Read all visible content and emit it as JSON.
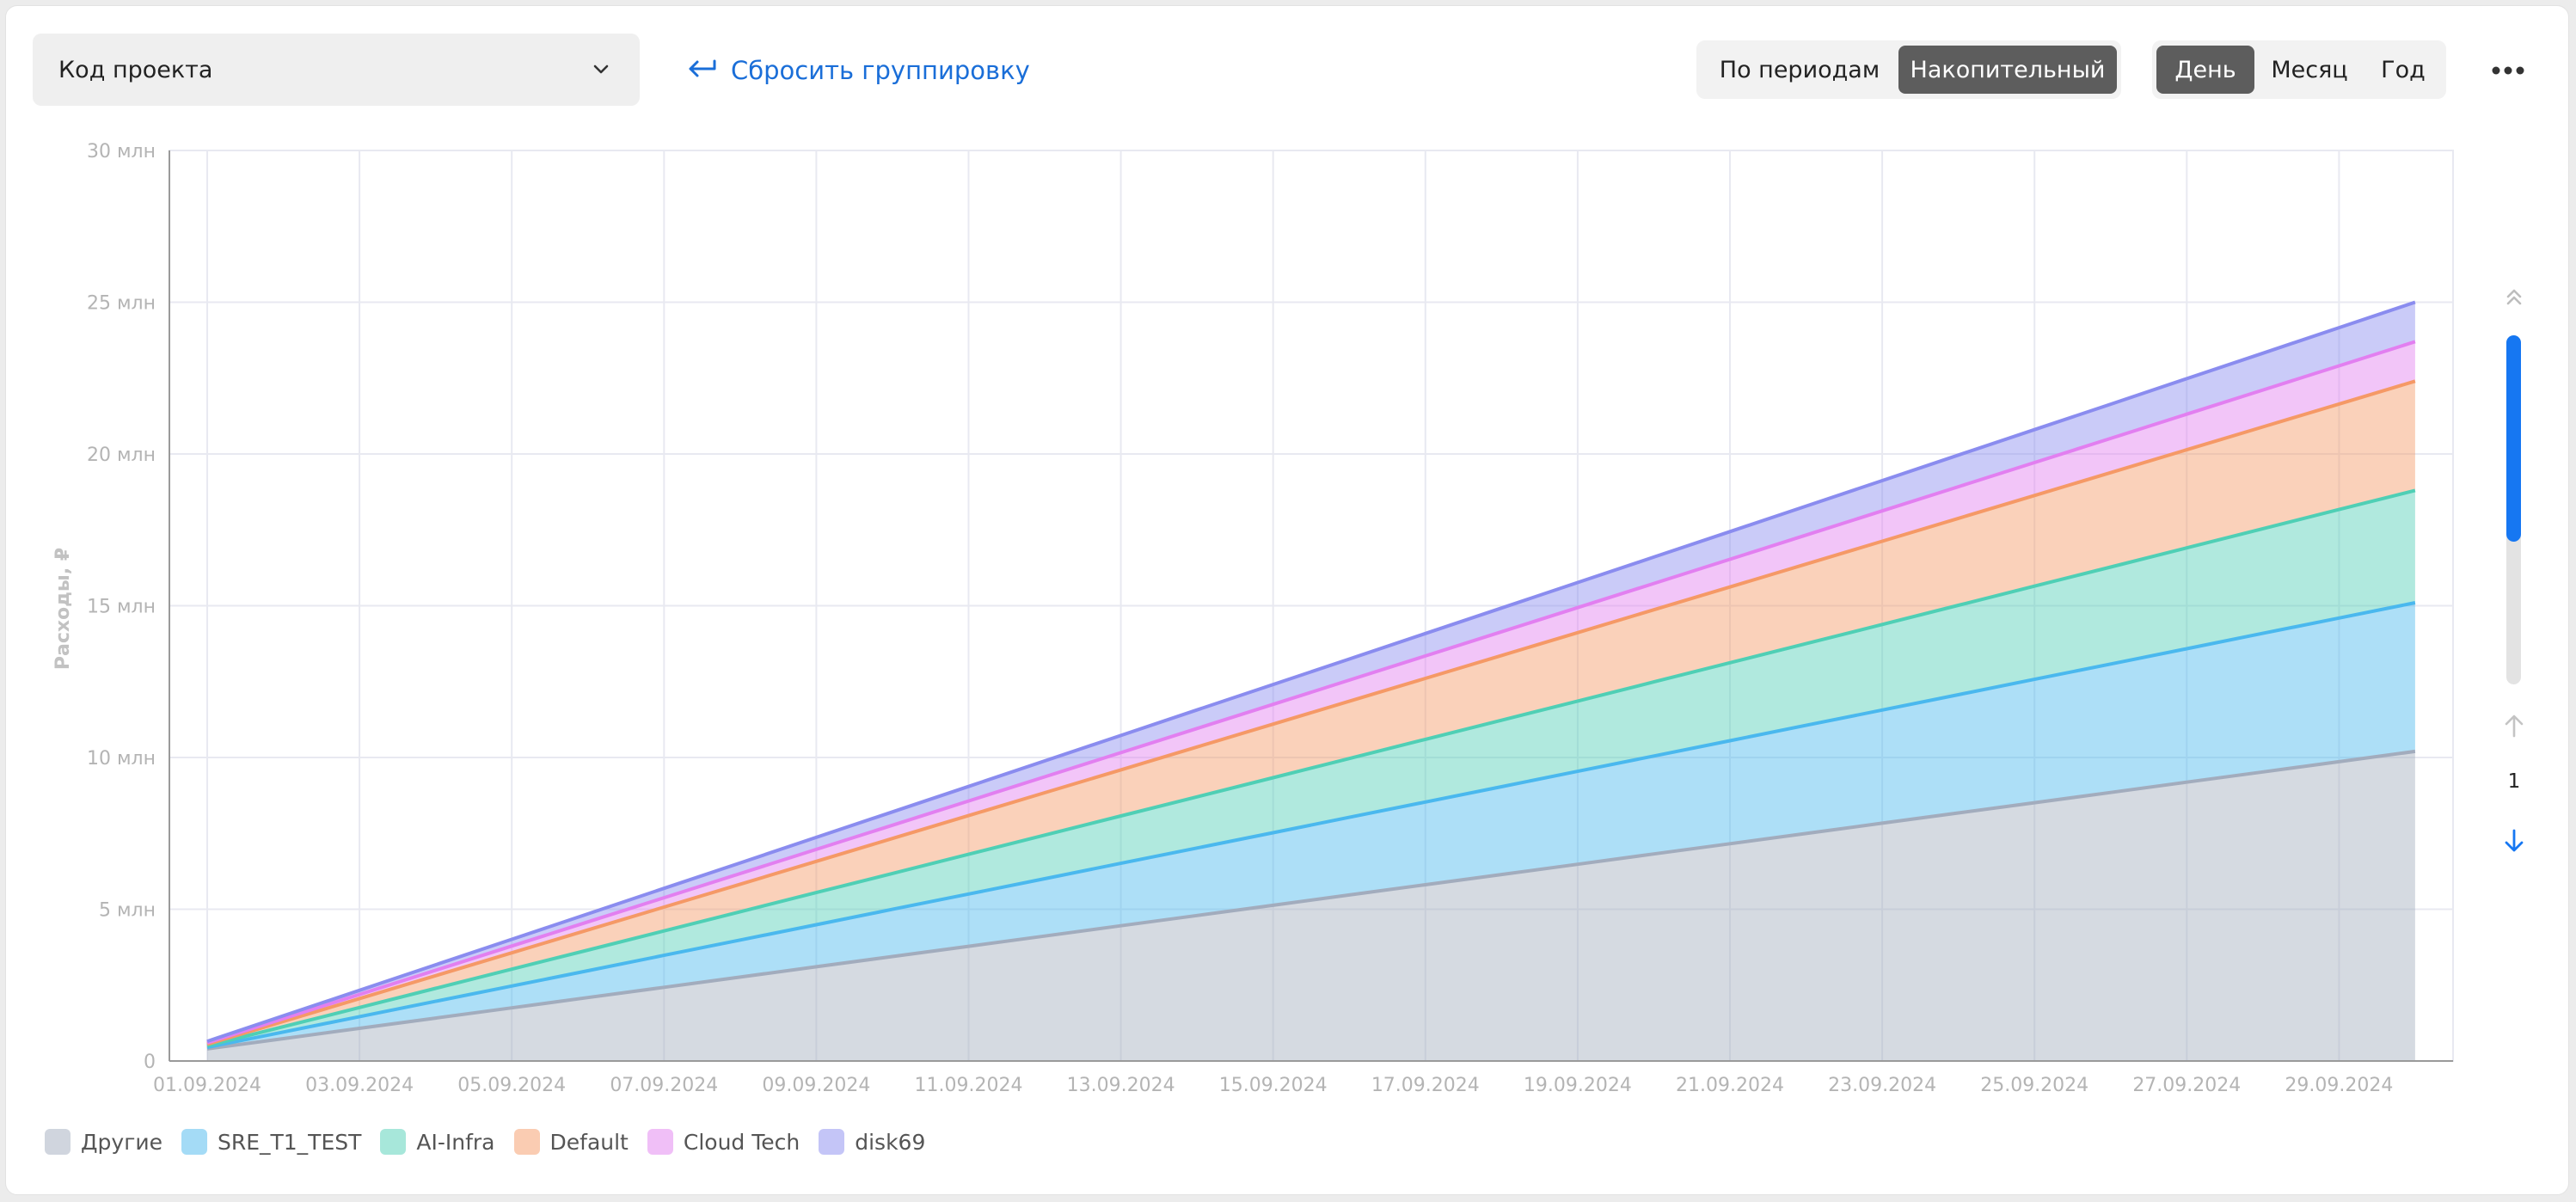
{
  "toolbar": {
    "group_select": {
      "value": "Код проекта"
    },
    "reset_grouping_label": "Сбросить группировку",
    "mode_tabs": [
      {
        "label": "По периодам",
        "active": false
      },
      {
        "label": "Накопительный",
        "active": true
      }
    ],
    "period_tabs": [
      {
        "label": "День",
        "active": true
      },
      {
        "label": "Месяц",
        "active": false
      },
      {
        "label": "Год",
        "active": false
      }
    ],
    "more_icon": "more-horizontal-icon"
  },
  "pager": {
    "scroll_top_icon": "double-chevron-up-icon",
    "up_icon": "arrow-up-icon",
    "down_icon": "arrow-down-icon",
    "page": "1",
    "accent_color": "#1677f2"
  },
  "chart_data": {
    "type": "area",
    "stacked": true,
    "cumulative": true,
    "ylabel": "Расходы, ₽",
    "xlabel": "",
    "ylim": [
      0,
      30
    ],
    "yticks": [
      {
        "value": 0,
        "label": "0"
      },
      {
        "value": 5,
        "label": "5 млн"
      },
      {
        "value": 10,
        "label": "10 млн"
      },
      {
        "value": 15,
        "label": "15 млн"
      },
      {
        "value": 20,
        "label": "20 млн"
      },
      {
        "value": 25,
        "label": "25 млн"
      },
      {
        "value": 30,
        "label": "30 млн"
      }
    ],
    "y_unit": "млн ₽",
    "x": [
      "01.09.2024",
      "02.09.2024",
      "03.09.2024",
      "04.09.2024",
      "05.09.2024",
      "06.09.2024",
      "07.09.2024",
      "08.09.2024",
      "09.09.2024",
      "10.09.2024",
      "11.09.2024",
      "12.09.2024",
      "13.09.2024",
      "14.09.2024",
      "15.09.2024",
      "16.09.2024",
      "17.09.2024",
      "18.09.2024",
      "19.09.2024",
      "20.09.2024",
      "21.09.2024",
      "22.09.2024",
      "23.09.2024",
      "24.09.2024",
      "25.09.2024",
      "26.09.2024",
      "27.09.2024",
      "28.09.2024",
      "29.09.2024",
      "30.09.2024"
    ],
    "xtick_labels": [
      "01.09.2024",
      "03.09.2024",
      "05.09.2024",
      "07.09.2024",
      "09.09.2024",
      "11.09.2024",
      "13.09.2024",
      "15.09.2024",
      "17.09.2024",
      "19.09.2024",
      "21.09.2024",
      "23.09.2024",
      "25.09.2024",
      "27.09.2024",
      "29.09.2024"
    ],
    "grid": true,
    "legend_position": "bottom-left",
    "series": [
      {
        "name": "Другие",
        "color": "#a2acbd",
        "start": 0.4,
        "end": 10.2
      },
      {
        "name": "SRE_T1_TEST",
        "color": "#4ab8ee",
        "start": 0.05,
        "end": 4.9
      },
      {
        "name": "AI-Infra",
        "color": "#4fcfb5",
        "start": 0.05,
        "end": 3.7
      },
      {
        "name": "Default",
        "color": "#f59966",
        "start": 0.05,
        "end": 3.6
      },
      {
        "name": "Cloud Tech",
        "color": "#e27ff0",
        "start": 0.05,
        "end": 1.3
      },
      {
        "name": "disk69",
        "color": "#8a8cef",
        "start": 0.05,
        "end": 1.3
      }
    ]
  }
}
